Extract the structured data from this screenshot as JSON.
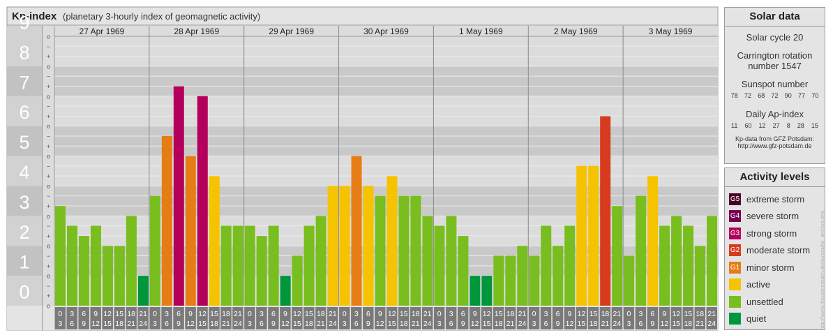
{
  "chart": {
    "title": "Kp-index",
    "subtitle": "(planetary 3-hourly index of geomagnetic activity)"
  },
  "chart_data": {
    "type": "bar",
    "title": "Kp-index",
    "subtitle": "(planetary 3-hourly index of geomagnetic activity)",
    "ylim": [
      0,
      9
    ],
    "y_ticks": [
      "0",
      "1",
      "2",
      "3",
      "4",
      "5",
      "6",
      "7",
      "8",
      "9"
    ],
    "minor_ticks": [
      "o",
      "+",
      "−"
    ],
    "days": [
      "27 Apr 1969",
      "28 Apr 1969",
      "29 Apr 1969",
      "30 Apr 1969",
      "1 May 1969",
      "2 May 1969",
      "3 May 1969"
    ],
    "interval_start": [
      "0",
      "3",
      "6",
      "9",
      "12",
      "15",
      "18",
      "21"
    ],
    "interval_end": [
      "3",
      "6",
      "9",
      "12",
      "15",
      "18",
      "21",
      "24"
    ],
    "values": [
      3.33,
      2.67,
      2.33,
      2.67,
      2.0,
      2.0,
      3.0,
      1.0,
      3.67,
      5.67,
      7.33,
      5.0,
      7.0,
      4.33,
      2.67,
      2.67,
      2.67,
      2.33,
      2.67,
      1.0,
      1.67,
      2.67,
      3.0,
      4.0,
      4.0,
      5.0,
      4.0,
      3.67,
      4.33,
      3.67,
      3.67,
      3.0,
      2.67,
      3.0,
      2.33,
      1.0,
      1.0,
      1.67,
      1.67,
      2.0,
      1.67,
      2.67,
      2.0,
      2.67,
      4.67,
      4.67,
      6.33,
      3.33,
      1.67,
      3.67,
      4.33,
      2.67,
      3.0,
      2.67,
      2.0,
      3.0
    ],
    "level_colors": {
      "quiet": "#00963c",
      "unsettled": "#78be1e",
      "active": "#f5c300",
      "G1": "#e67d14",
      "G2": "#d73a1e",
      "G3": "#b4005a",
      "G4": "#780050",
      "G5": "#4b0028"
    },
    "grid": true
  },
  "solar": {
    "title": "Solar data",
    "cycle": "Solar cycle 20",
    "carrington_1": "Carrington rotation",
    "carrington_2": "number 1547",
    "sunspot_label": "Sunspot number",
    "sunspot_values": [
      "78",
      "72",
      "68",
      "72",
      "90",
      "77",
      "70"
    ],
    "ap_label": "Daily Ap-index",
    "ap_values": [
      "11",
      "60",
      "12",
      "27",
      "8",
      "28",
      "15"
    ],
    "source_1": "Kp-data from GFZ Potsdam:",
    "source_2": "http://www.gfz-potsdam.de"
  },
  "levels": {
    "title": "Activity levels",
    "items": [
      {
        "badge": "G5",
        "label": "extreme storm",
        "color": "#4b0028"
      },
      {
        "badge": "G4",
        "label": "severe storm",
        "color": "#780050"
      },
      {
        "badge": "G3",
        "label": "strong storm",
        "color": "#b4005a"
      },
      {
        "badge": "G2",
        "label": "moderate storm",
        "color": "#d73a1e"
      },
      {
        "badge": "G1",
        "label": "minor storm",
        "color": "#e67d14"
      },
      {
        "badge": "",
        "label": "active",
        "color": "#f5c300"
      },
      {
        "badge": "",
        "label": "unsettled",
        "color": "#78be1e"
      },
      {
        "badge": "",
        "label": "quiet",
        "color": "#00963c"
      }
    ]
  },
  "watermark": "http://www.theusersrealm.de/aurora/kp_archive.php"
}
